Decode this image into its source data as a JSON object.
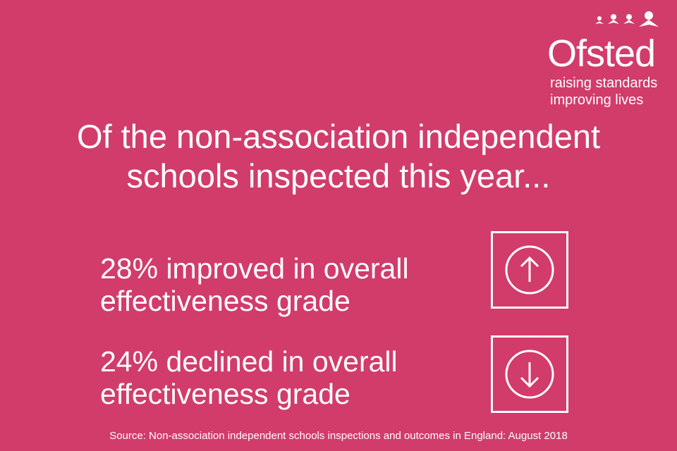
{
  "logo": {
    "name": "Ofsted",
    "tagline": [
      "raising standards",
      "improving lives"
    ]
  },
  "heading": "Of the non-association independent schools inspected this year...",
  "stats": [
    {
      "text": "28% improved in overall effectiveness grade",
      "icon": "up"
    },
    {
      "text": "24% declined in overall effectiveness grade",
      "icon": "down"
    }
  ],
  "source": "Source: Non-association independent schools inspections and outcomes in England: August 2018"
}
